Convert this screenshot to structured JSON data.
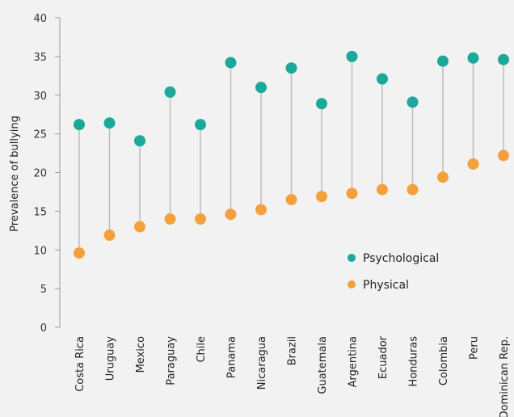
{
  "chart_data": {
    "type": "scatter",
    "subtype": "dumbbell",
    "categories": [
      "Costa Rica",
      "Uruguay",
      "Mexico",
      "Paraguay",
      "Chile",
      "Panama",
      "Nicaragua",
      "Brazil",
      "Guatemala",
      "Argentina",
      "Ecuador",
      "Honduras",
      "Colombia",
      "Peru",
      "Dominican Rep."
    ],
    "series": [
      {
        "name": "Psychological",
        "color": "#1aa99a",
        "values": [
          26.2,
          26.4,
          24.1,
          30.4,
          26.2,
          34.2,
          31.0,
          33.5,
          28.9,
          35.0,
          32.1,
          29.1,
          34.4,
          34.8,
          34.6
        ]
      },
      {
        "name": "Physical",
        "color": "#f4a03c",
        "values": [
          9.6,
          11.9,
          13.0,
          14.0,
          14.0,
          14.6,
          15.2,
          16.5,
          16.9,
          17.3,
          17.8,
          17.8,
          19.4,
          21.1,
          22.2
        ]
      }
    ],
    "ylabel": "Prevalence of bullying",
    "xlabel": "",
    "ylim": [
      0,
      40
    ],
    "yticks": [
      0,
      5,
      10,
      15,
      20,
      25,
      30,
      35,
      40
    ],
    "connector_color": "#bdbdbd",
    "grid": false,
    "legend": "center-right"
  }
}
